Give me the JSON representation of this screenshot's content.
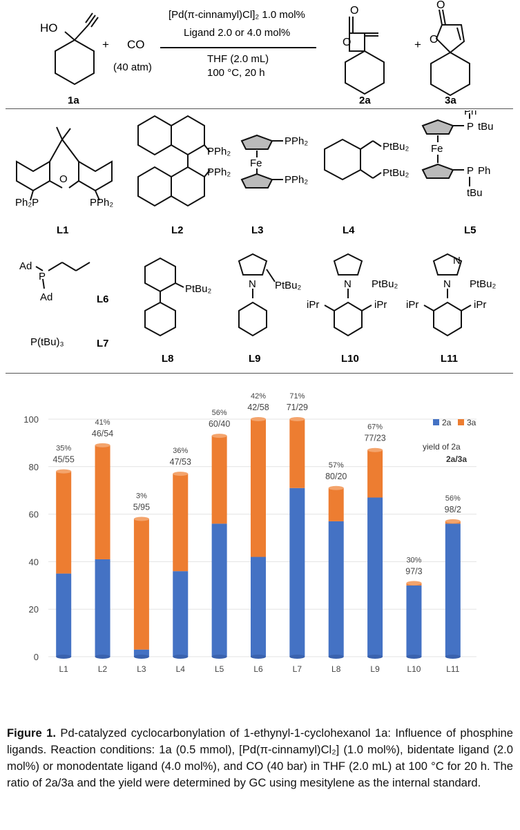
{
  "scheme": {
    "reagent_co": "CO",
    "pressure": "(40 atm)",
    "plus1": "+",
    "plus2": "+",
    "sm_label": "1a",
    "sm_oh": "HO",
    "cond1": "[Pd(π-cinnamyl)Cl]₂ 1.0 mol%",
    "cond2": "Ligand 2.0 or 4.0 mol%",
    "cond3": "THF (2.0 mL)",
    "cond4": "100 °C, 20 h",
    "prod1_label": "2a",
    "prod2_label": "3a"
  },
  "ligands": {
    "L1": {
      "label": "L1",
      "p1": "Ph₂P",
      "p2": "PPh₂",
      "het": "O"
    },
    "L2": {
      "label": "L2",
      "p1": "PPh₂",
      "p2": "PPh₂"
    },
    "L3": {
      "label": "L3",
      "p1": "PPh₂",
      "p2": "PPh₂",
      "metal": "Fe"
    },
    "L4": {
      "label": "L4",
      "p1": "PtBu₂",
      "p2": "PtBu₂"
    },
    "L5": {
      "label": "L5",
      "metal": "Fe",
      "ph1": "Ph",
      "p1": "P",
      "tbu1": "tBu",
      "p2": "P",
      "ph2": "Ph",
      "tbu2": "tBu"
    },
    "L6": {
      "label": "L6",
      "ad1": "Ad",
      "ad2": "Ad",
      "p": "P"
    },
    "L7": {
      "label": "L7",
      "formula": "P(tBu)₃"
    },
    "L8": {
      "label": "L8",
      "p": "PtBu₂"
    },
    "L9": {
      "label": "L9",
      "p": "PtBu₂",
      "n": "N"
    },
    "L10": {
      "label": "L10",
      "p": "PtBu₂",
      "n": "N",
      "ipr1": "iPr",
      "ipr2": "iPr"
    },
    "L11": {
      "label": "L11",
      "p": "PtBu₂",
      "n1": "N",
      "n2": "N",
      "ipr1": "iPr",
      "ipr2": "iPr"
    }
  },
  "chart_data": {
    "type": "bar",
    "stacked": true,
    "categories": [
      "L1",
      "L2",
      "L3",
      "L4",
      "L5",
      "L6",
      "L7",
      "L8",
      "L9",
      "L10",
      "L11"
    ],
    "series": [
      {
        "name": "2a",
        "color": "#4472C4",
        "values": [
          35,
          41,
          3,
          36,
          56,
          42,
          71,
          57,
          67,
          30,
          56
        ]
      },
      {
        "name": "3a",
        "color": "#ED7D31",
        "values": [
          43,
          48,
          55,
          41,
          37,
          58,
          29,
          14,
          20,
          1,
          1
        ]
      }
    ],
    "yield_labels": [
      "35%",
      "41%",
      "3%",
      "36%",
      "56%",
      "42%",
      "71%",
      "57%",
      "67%",
      "30%",
      "56%"
    ],
    "ratio_labels": [
      "45/55",
      "46/54",
      "5/95",
      "47/53",
      "60/40",
      "42/58",
      "71/29",
      "80/20",
      "77/23",
      "97/3",
      "98/2"
    ],
    "ylim": [
      0,
      100
    ],
    "yticks": [
      "0",
      "20",
      "40",
      "60",
      "80",
      "100"
    ],
    "legend": {
      "placement": "top-right",
      "line1": "yield of 2a",
      "line2": "2a/3a"
    }
  },
  "caption": {
    "figure": "Figure 1.",
    "text": "Pd-catalyzed cyclocarbonylation of 1-ethynyl-1-cyclohexanol 1a: Influence of phosphine ligands. Reaction conditions: 1a (0.5 mmol), [Pd(π-cinnamyl)Cl₂] (1.0 mol%), bidentate ligand (2.0 mol%) or monodentate ligand (4.0 mol%), and CO (40 bar) in THF (2.0 mL) at 100 °C for 20 h. The ratio of 2a/3a and the yield were determined by GC using mesitylene as the internal standard."
  }
}
